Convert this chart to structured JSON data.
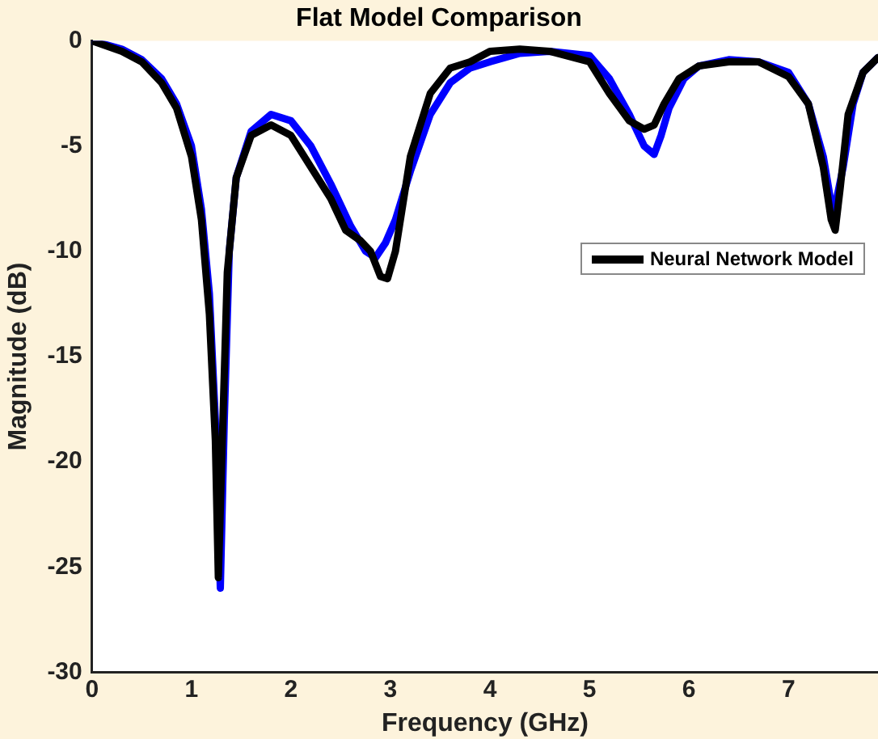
{
  "chart_data": {
    "type": "line",
    "title": "Flat Model Comparison",
    "xlabel": "Frequency (GHz)",
    "ylabel": "Magnitude (dB)",
    "xlim": [
      0,
      7.9
    ],
    "xticks": [
      0,
      1,
      2,
      3,
      4,
      5,
      6,
      7
    ],
    "ylim": [
      -30,
      0
    ],
    "yticks": [
      -30,
      -25,
      -20,
      -15,
      -10,
      -5,
      0
    ],
    "grid": false,
    "legend": "right",
    "marker": "none",
    "line_style": "solid",
    "series": [
      {
        "name": "Neural Network Model",
        "color": "#000000",
        "x": [
          0,
          0.3,
          0.5,
          0.7,
          0.85,
          1.0,
          1.1,
          1.18,
          1.24,
          1.27,
          1.31,
          1.36,
          1.45,
          1.6,
          1.8,
          2.0,
          2.2,
          2.4,
          2.55,
          2.7,
          2.8,
          2.9,
          2.97,
          3.05,
          3.2,
          3.4,
          3.6,
          3.8,
          4.0,
          4.3,
          4.6,
          5.0,
          5.2,
          5.4,
          5.55,
          5.65,
          5.75,
          5.9,
          6.1,
          6.4,
          6.7,
          7.0,
          7.2,
          7.35,
          7.43,
          7.47,
          7.52,
          7.6,
          7.75,
          7.9
        ],
        "values": [
          0,
          -0.5,
          -1,
          -2,
          -3.2,
          -5.5,
          -8.5,
          -13,
          -19,
          -25.5,
          -19,
          -11,
          -6.5,
          -4.5,
          -4,
          -4.5,
          -6,
          -7.5,
          -9,
          -9.5,
          -10,
          -11.2,
          -11.3,
          -10,
          -5.5,
          -2.5,
          -1.3,
          -1,
          -0.5,
          -0.4,
          -0.5,
          -1,
          -2.5,
          -3.8,
          -4.2,
          -4,
          -3,
          -1.8,
          -1.2,
          -1,
          -1,
          -1.7,
          -3,
          -6,
          -8.5,
          -9,
          -7,
          -3.5,
          -1.5,
          -0.8
        ]
      },
      {
        "color": "#0000ff",
        "x": [
          0,
          0.3,
          0.5,
          0.7,
          0.85,
          1.0,
          1.1,
          1.18,
          1.24,
          1.29,
          1.33,
          1.38,
          1.45,
          1.6,
          1.8,
          2.0,
          2.2,
          2.4,
          2.6,
          2.75,
          2.85,
          2.95,
          3.05,
          3.2,
          3.4,
          3.6,
          3.8,
          4.0,
          4.3,
          4.6,
          5.0,
          5.2,
          5.4,
          5.55,
          5.65,
          5.72,
          5.8,
          5.95,
          6.1,
          6.4,
          6.7,
          7.0,
          7.2,
          7.35,
          7.45,
          7.55,
          7.65,
          7.75,
          7.9
        ],
        "values": [
          0,
          -0.4,
          -0.9,
          -1.8,
          -3,
          -5,
          -8,
          -12,
          -18,
          -26,
          -18,
          -10,
          -6.5,
          -4.3,
          -3.5,
          -3.8,
          -5,
          -6.8,
          -8.8,
          -10,
          -10.3,
          -9.6,
          -8.5,
          -6.2,
          -3.5,
          -2,
          -1.3,
          -1,
          -0.6,
          -0.5,
          -0.7,
          -1.8,
          -3.5,
          -5,
          -5.4,
          -4.5,
          -3.2,
          -1.8,
          -1.2,
          -0.9,
          -1,
          -1.5,
          -3,
          -5.5,
          -8.3,
          -6,
          -3,
          -1.5,
          -0.8
        ]
      }
    ]
  }
}
